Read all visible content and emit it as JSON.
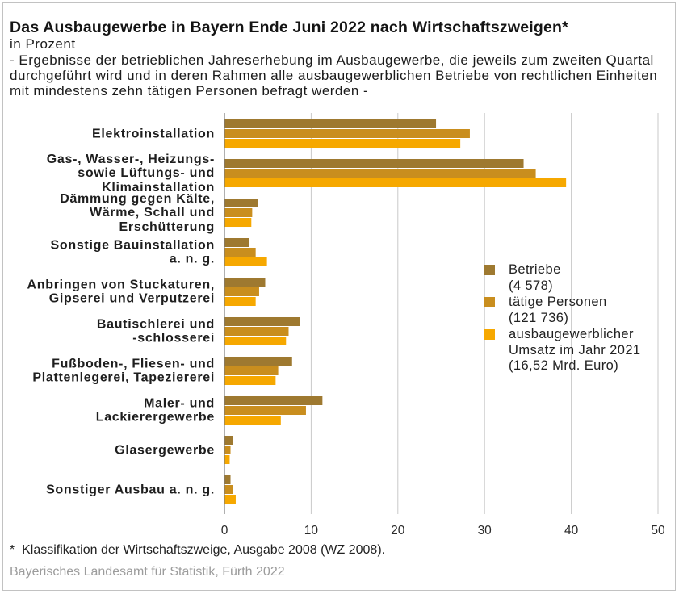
{
  "chart_data": {
    "type": "bar",
    "orientation": "horizontal",
    "title": "Das Ausbaugewerbe in Bayern Ende Juni 2022 nach Wirtschaftszweigen*",
    "subtitle": "in Prozent",
    "description": "- Ergebnisse der betrieblichen Jahreserhebung im Ausbaugewerbe, die jeweils zum zweiten Quartal\ndurchgeführt wird und in deren Rahmen alle ausbaugewerblichen Betriebe von rechtlichen Einheiten\nmit mindestens zehn tätigen Personen befragt werden -",
    "xlim": [
      0,
      50
    ],
    "xticks": [
      0,
      10,
      20,
      30,
      40,
      50
    ],
    "grid": true,
    "legend_position": "right",
    "categories": [
      "Elektroinstallation",
      "Gas-, Wasser-, Heizungs-\nsowie Lüftungs- und\nKlimainstallation",
      "Dämmung gegen Kälte,\nWärme, Schall und\nErschütterung",
      "Sonstige Bauinstallation\na. n. g.",
      "Anbringen von Stuckaturen,\nGipserei und Verputzerei",
      "Bautischlerei und\n-schlosserei",
      "Fußboden-, Fliesen- und\nPlattenlegerei, Tapeziererei",
      "Maler- und\nLackierergewerbe",
      "Glasergewerbe",
      "Sonstiger Ausbau a. n. g."
    ],
    "series": [
      {
        "name": "Betriebe",
        "detail": "(4 578)",
        "color": "#9E7930",
        "values": [
          24.4,
          34.5,
          3.9,
          2.8,
          4.7,
          8.7,
          7.8,
          11.3,
          1.0,
          0.7
        ]
      },
      {
        "name": "tätige Personen",
        "detail": "(121 736)",
        "color": "#C98E1E",
        "values": [
          28.3,
          35.9,
          3.2,
          3.6,
          4.0,
          7.4,
          6.2,
          9.4,
          0.7,
          1.0
        ]
      },
      {
        "name": "ausbaugewerblicher\nUmsatz im Jahr 2021",
        "detail": "(16,52 Mrd. Euro)",
        "color": "#F6A800",
        "values": [
          27.2,
          39.4,
          3.1,
          4.9,
          3.6,
          7.1,
          5.9,
          6.5,
          0.6,
          1.3
        ]
      }
    ]
  },
  "footer": {
    "footnote": "*  Klassifikation der Wirtschaftszweige, Ausgabe 2008 (WZ 2008).",
    "source": "Bayerisches Landesamt für Statistik, Fürth 2022"
  }
}
